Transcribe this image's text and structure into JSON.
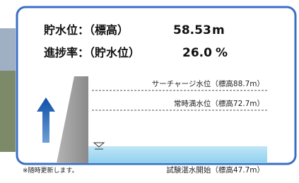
{
  "panel": {
    "storage_label": "貯水位：（標高）",
    "storage_value": "58.53",
    "storage_unit": "m",
    "progress_label": "進捗率：（貯水位）",
    "progress_value": "26.0",
    "progress_unit": "%"
  },
  "levels": {
    "surcharge": "サーチャージ水位（標高88.7m）",
    "normal_full": "常時満水位（標高72.7m）",
    "start": "試験湛水開始（標高47.7m）"
  },
  "note": "※随時更新します。"
}
